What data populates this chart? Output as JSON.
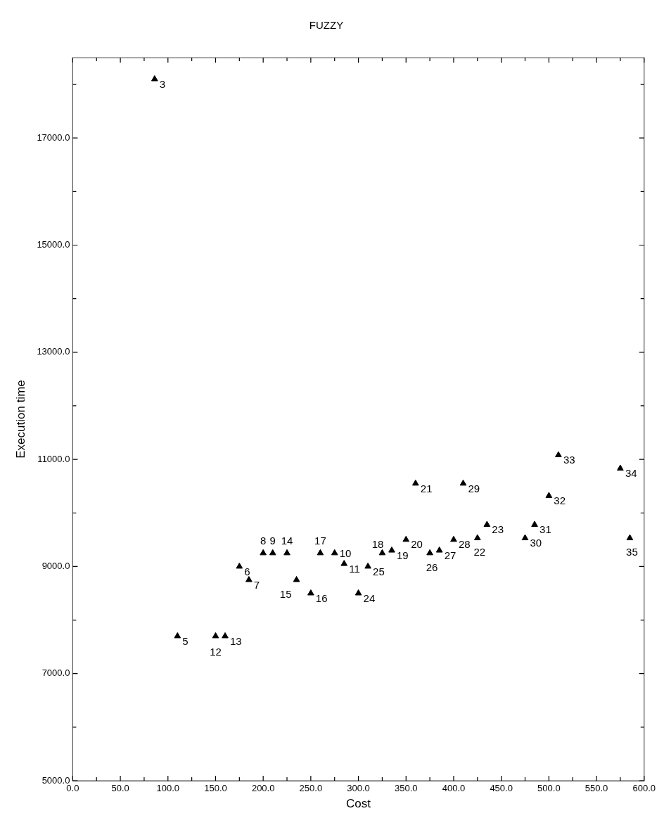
{
  "chart_data": {
    "type": "scatter",
    "title": "FUZZY",
    "xlabel": "Cost",
    "ylabel": "Execution time",
    "x": [
      86,
      110,
      175,
      185,
      200,
      210,
      275,
      285,
      150,
      160,
      225,
      235,
      250,
      260,
      325,
      335,
      350,
      360,
      425,
      435,
      300,
      310,
      375,
      385,
      400,
      410,
      475,
      485,
      500,
      510,
      575,
      585
    ],
    "series": [
      {
        "color": "#000000",
        "values": [
          18100,
          7700,
          9000,
          8750,
          9250,
          9250,
          9250,
          9050,
          7700,
          7700,
          9250,
          8750,
          8500,
          9250,
          9250,
          9300,
          9500,
          10550,
          9530,
          9780,
          8500,
          9000,
          9250,
          9300,
          9500,
          10550,
          9530,
          9780,
          10320,
          11080,
          10830,
          9530
        ]
      }
    ],
    "annotations": [
      {
        "text": "3",
        "x": 86,
        "y": 18100
      },
      {
        "text": "5",
        "x": 110,
        "y": 7700
      },
      {
        "text": "6",
        "x": 175,
        "y": 9000
      },
      {
        "text": "7",
        "x": 185,
        "y": 8750
      },
      {
        "text": "8",
        "x": 200,
        "y": 9250
      },
      {
        "text": "9",
        "x": 210,
        "y": 9250
      },
      {
        "text": "10",
        "x": 275,
        "y": 9250
      },
      {
        "text": "11",
        "x": 285,
        "y": 9050
      },
      {
        "text": "12",
        "x": 150,
        "y": 7700
      },
      {
        "text": "13",
        "x": 160,
        "y": 7700
      },
      {
        "text": "14",
        "x": 225,
        "y": 9250
      },
      {
        "text": "15",
        "x": 235,
        "y": 8750
      },
      {
        "text": "16",
        "x": 250,
        "y": 8500
      },
      {
        "text": "17",
        "x": 260,
        "y": 9250
      },
      {
        "text": "18",
        "x": 325,
        "y": 9250
      },
      {
        "text": "19",
        "x": 335,
        "y": 9300
      },
      {
        "text": "20",
        "x": 350,
        "y": 9500
      },
      {
        "text": "21",
        "x": 360,
        "y": 10550
      },
      {
        "text": "22",
        "x": 425,
        "y": 9530
      },
      {
        "text": "23",
        "x": 435,
        "y": 9780
      },
      {
        "text": "24",
        "x": 300,
        "y": 8500
      },
      {
        "text": "25",
        "x": 310,
        "y": 9000
      },
      {
        "text": "26",
        "x": 375,
        "y": 9250
      },
      {
        "text": "27",
        "x": 385,
        "y": 9300
      },
      {
        "text": "28",
        "x": 400,
        "y": 9500
      },
      {
        "text": "29",
        "x": 410,
        "y": 10550
      },
      {
        "text": "30",
        "x": 475,
        "y": 9530
      },
      {
        "text": "31",
        "x": 485,
        "y": 9780
      },
      {
        "text": "32",
        "x": 500,
        "y": 10320
      },
      {
        "text": "33",
        "x": 510,
        "y": 11080
      },
      {
        "text": "34",
        "x": 575,
        "y": 10830
      },
      {
        "text": "35",
        "x": 585,
        "y": 9530
      }
    ],
    "xlim": [
      0,
      600
    ],
    "xticks": [
      {
        "value": 0,
        "label": "0.0"
      },
      {
        "value": 25,
        "label": null
      },
      {
        "value": 50,
        "label": "50.0"
      },
      {
        "value": 75,
        "label": null
      },
      {
        "value": 100,
        "label": "100.0"
      },
      {
        "value": 125,
        "label": null
      },
      {
        "value": 150,
        "label": "150.0"
      },
      {
        "value": 175,
        "label": null
      },
      {
        "value": 200,
        "label": "200.0"
      },
      {
        "value": 225,
        "label": null
      },
      {
        "value": 250,
        "label": "250.0"
      },
      {
        "value": 275,
        "label": null
      },
      {
        "value": 300,
        "label": "300.0"
      },
      {
        "value": 325,
        "label": null
      },
      {
        "value": 350,
        "label": "350.0"
      },
      {
        "value": 375,
        "label": null
      },
      {
        "value": 400,
        "label": "400.0"
      },
      {
        "value": 425,
        "label": null
      },
      {
        "value": 450,
        "label": "450.0"
      },
      {
        "value": 475,
        "label": null
      },
      {
        "value": 500,
        "label": "500.0"
      },
      {
        "value": 525,
        "label": null
      },
      {
        "value": 550,
        "label": "550.0"
      },
      {
        "value": 575,
        "label": null
      },
      {
        "value": 600,
        "label": "600.0"
      }
    ],
    "ylim": [
      5000,
      18500
    ],
    "yticks": [
      {
        "value": 5000,
        "label": "5000.0"
      },
      {
        "value": 6000,
        "label": null
      },
      {
        "value": 7000,
        "label": "7000.0"
      },
      {
        "value": 8000,
        "label": null
      },
      {
        "value": 9000,
        "label": "9000.0"
      },
      {
        "value": 10000,
        "label": null
      },
      {
        "value": 11000,
        "label": "11000.0"
      },
      {
        "value": 12000,
        "label": null
      },
      {
        "value": 13000,
        "label": "13000.0"
      },
      {
        "value": 14000,
        "label": null
      },
      {
        "value": 15000,
        "label": "15000.0"
      },
      {
        "value": 16000,
        "label": null
      },
      {
        "value": 17000,
        "label": "17000.0"
      },
      {
        "value": 18000,
        "label": null
      }
    ],
    "marker": "triangle",
    "grid": false,
    "legend": false
  }
}
